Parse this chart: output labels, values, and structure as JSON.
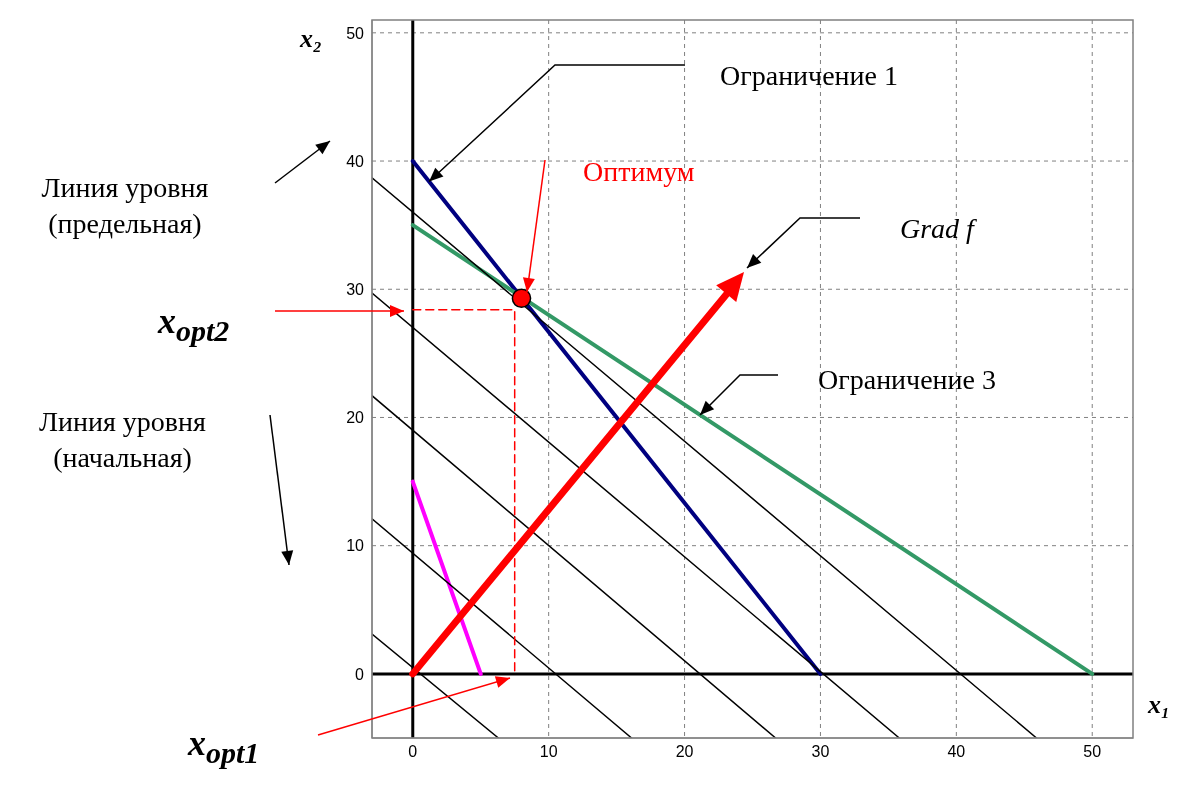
{
  "chart_data": {
    "type": "line",
    "xlabel": "x₁",
    "ylabel": "x₂",
    "xlim": [
      -3,
      53
    ],
    "ylim": [
      -5,
      51
    ],
    "xticks": [
      0,
      10,
      20,
      30,
      40,
      50
    ],
    "yticks": [
      0,
      10,
      20,
      30,
      40,
      50
    ],
    "grid": true,
    "marker": "none",
    "line_style": "solid",
    "series": [
      {
        "color": "#000000",
        "x": [
          0,
          0
        ],
        "values": [
          -5,
          51
        ]
      },
      {
        "color": "#000000",
        "x": [
          -3,
          53
        ],
        "values": [
          0,
          0
        ]
      },
      {
        "color": "#000080",
        "x": [
          0,
          30
        ],
        "values": [
          40,
          0
        ]
      },
      {
        "color": "#339966",
        "x": [
          0,
          50
        ],
        "values": [
          35,
          0
        ]
      },
      {
        "color": "#ff00ff",
        "x": [
          0,
          5
        ],
        "values": [
          15,
          0
        ]
      },
      {
        "color": "#000000",
        "x": [
          -3,
          45.9
        ],
        "values": [
          38.7,
          -5
        ]
      },
      {
        "color": "#000000",
        "x": [
          -3,
          35.8
        ],
        "values": [
          29.7,
          -5
        ]
      },
      {
        "color": "#000000",
        "x": [
          -3,
          26.7
        ],
        "values": [
          21.7,
          -5
        ]
      },
      {
        "color": "#000000",
        "x": [
          -3,
          16.1
        ],
        "values": [
          12.1,
          -5
        ]
      },
      {
        "color": "#000000",
        "x": [
          -3,
          6.3
        ],
        "values": [
          3.1,
          -5
        ]
      },
      {
        "color": "#ff0000",
        "x": [
          0,
          7.5,
          7.5
        ],
        "values": [
          28.4,
          28.4,
          0
        ],
        "line_style": "dashed"
      },
      {
        "type": "scatter",
        "color": "#ff0000",
        "x": [
          8
        ],
        "values": [
          29.3
        ],
        "marker": "circle"
      }
    ],
    "annotations": [
      {
        "text": "Ограничение 1",
        "x": 1.2,
        "y": 38.4
      },
      "Оптимум",
      "Grad f",
      "Ограничение 3",
      "Линия уровня (предельная)",
      "x$_{opt2}$",
      "Линия уровня (начальная)",
      "x$_{opt1}$"
    ]
  }
}
